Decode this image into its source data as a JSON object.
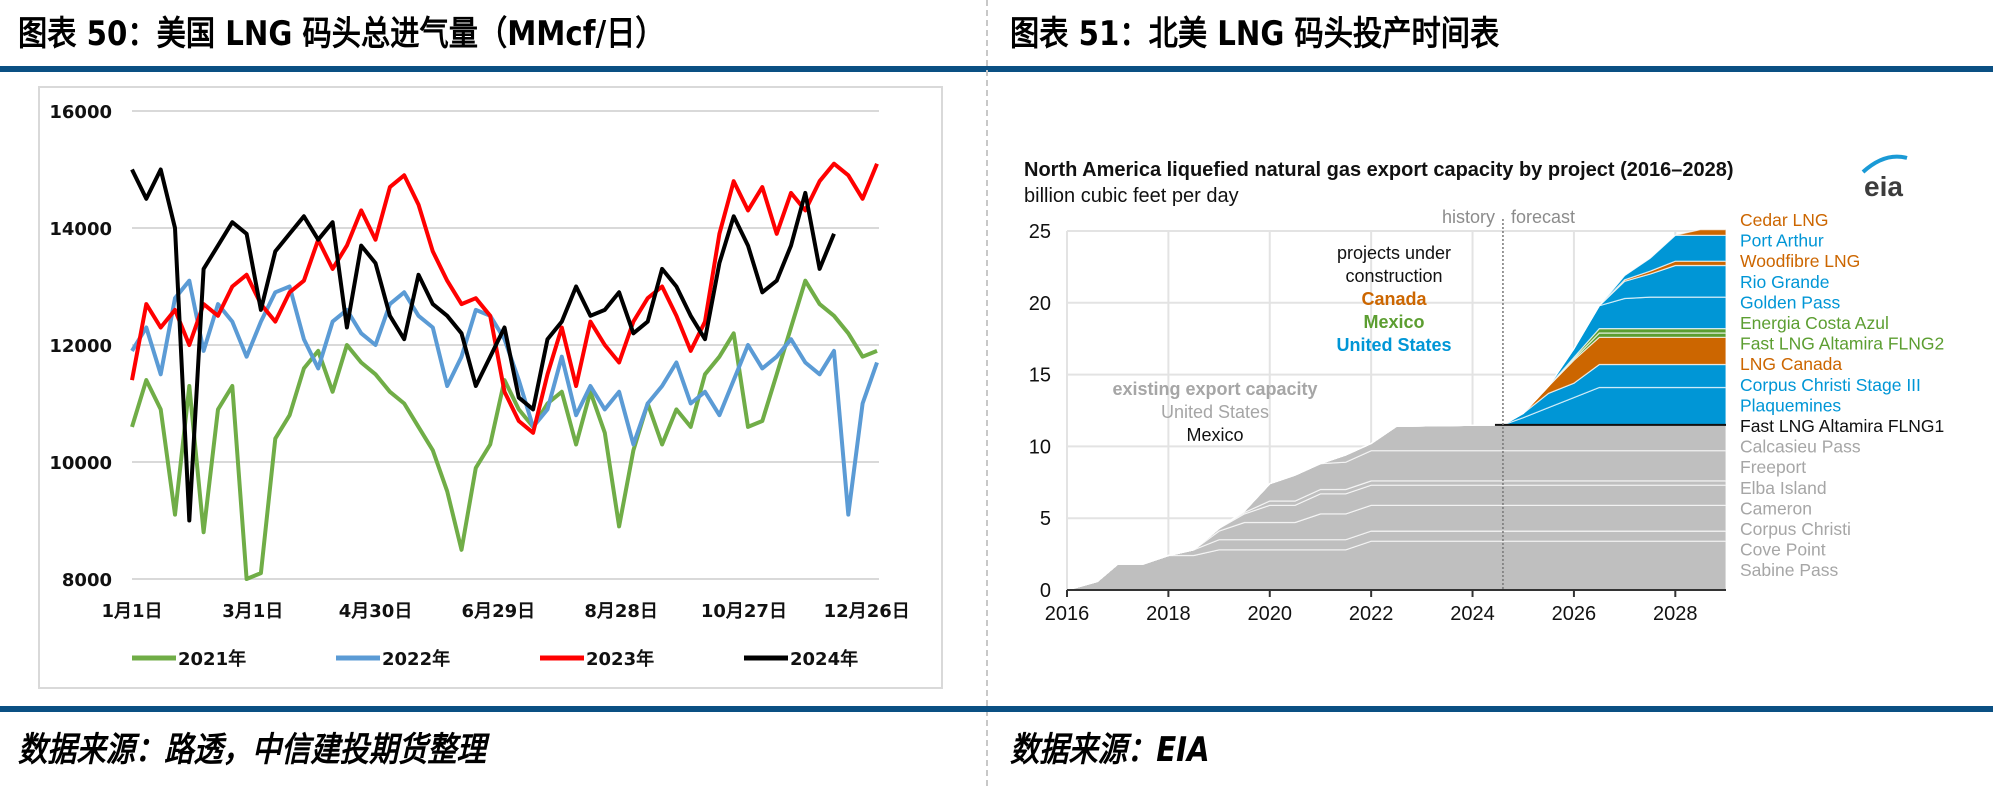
{
  "left_panel": {
    "title": "图表 50：美国 LNG 码头总进气量（MMcf/日）",
    "source": "数据来源：路透，中信建投期货整理"
  },
  "right_panel": {
    "title": "图表 51：北美 LNG 码头投产时间表",
    "source": "数据来源：EIA"
  },
  "colors": {
    "rule": "#0a5083",
    "s2021": "#70ad47",
    "s2022": "#5b9bd5",
    "s2023": "#ff0000",
    "s2024": "#000000",
    "existing": "#bfbfbf",
    "us": "#0096d6",
    "canada": "#cc6600",
    "mexico": "#5c9e31"
  },
  "chart_data": [
    {
      "type": "line",
      "title": "美国 LNG 码头总进气量（MMcf/日）",
      "xlabel": "",
      "ylabel": "",
      "ylim": [
        8000,
        16000
      ],
      "yticks": [
        "16000",
        "14000",
        "12000",
        "10000",
        "8000"
      ],
      "ytick_values": [
        16000,
        14000,
        12000,
        10000,
        8000
      ],
      "xticks": [
        "1月1日",
        "3月1日",
        "4月30日",
        "6月29日",
        "8月28日",
        "10月27日",
        "12月26日"
      ],
      "xtick_days": [
        0,
        59,
        119,
        179,
        239,
        299,
        359
      ],
      "xlim_days": [
        0,
        365
      ],
      "grid": true,
      "legend_position": "bottom",
      "x_days": [
        0,
        7,
        14,
        21,
        28,
        35,
        42,
        49,
        56,
        63,
        70,
        77,
        84,
        91,
        98,
        105,
        112,
        119,
        126,
        133,
        140,
        147,
        154,
        161,
        168,
        175,
        182,
        189,
        196,
        203,
        210,
        217,
        224,
        231,
        238,
        245,
        252,
        259,
        266,
        273,
        280,
        287,
        294,
        301,
        308,
        315,
        322,
        329,
        336,
        343,
        350,
        357,
        364
      ],
      "series": [
        {
          "name": "2021年",
          "color_key": "s2021",
          "values": [
            10600,
            11400,
            10900,
            9100,
            11300,
            8800,
            10900,
            11300,
            7900,
            8100,
            10400,
            10800,
            11600,
            11900,
            11200,
            12000,
            11700,
            11500,
            11200,
            11000,
            10600,
            10200,
            9500,
            8500,
            9900,
            10300,
            11400,
            10900,
            10600,
            11000,
            11200,
            10300,
            11200,
            10500,
            8900,
            10200,
            11000,
            10300,
            10900,
            10600,
            11500,
            11800,
            12200,
            10600,
            10700,
            11500,
            12300,
            13100,
            12700,
            12500,
            12200,
            11800,
            11900
          ]
        },
        {
          "name": "2022年",
          "color_key": "s2022",
          "values": [
            11900,
            12300,
            11500,
            12800,
            13100,
            11900,
            12700,
            12400,
            11800,
            12400,
            12900,
            13000,
            12100,
            11600,
            12400,
            12600,
            12200,
            12000,
            12700,
            12900,
            12500,
            12300,
            11300,
            11800,
            12600,
            12500,
            12100,
            11400,
            10600,
            10900,
            11800,
            10800,
            11300,
            10900,
            11200,
            10300,
            11000,
            11300,
            11700,
            11000,
            11200,
            10800,
            11400,
            12000,
            11600,
            11800,
            12100,
            11700,
            11500,
            11900,
            9100,
            11000,
            11700
          ]
        },
        {
          "name": "2023年",
          "color_key": "s2023",
          "values": [
            11400,
            12700,
            12300,
            12600,
            12000,
            12700,
            12500,
            13000,
            13200,
            12700,
            12400,
            12900,
            13100,
            13800,
            13300,
            13700,
            14300,
            13800,
            14700,
            14900,
            14400,
            13600,
            13100,
            12700,
            12800,
            12500,
            11200,
            10700,
            10500,
            11500,
            12300,
            11300,
            12400,
            12000,
            11700,
            12400,
            12800,
            13000,
            12500,
            11900,
            12400,
            13900,
            14800,
            14300,
            14700,
            13900,
            14600,
            14300,
            14800,
            15100,
            14900,
            14500,
            15100
          ]
        },
        {
          "name": "2024年",
          "color_key": "s2024",
          "values": [
            15000,
            14500,
            15000,
            14000,
            9000,
            13300,
            13700,
            14100,
            13900,
            12600,
            13600,
            13900,
            14200,
            13800,
            14100,
            12300,
            13700,
            13400,
            12500,
            12100,
            13200,
            12700,
            12500,
            12200,
            11300,
            11800,
            12300,
            11100,
            10900,
            12100,
            12400,
            13000,
            12500,
            12600,
            12900,
            12200,
            12400,
            13300,
            13000,
            12500,
            12100,
            13400,
            14200,
            13700,
            12900,
            13100,
            13700,
            14600,
            13300,
            13900,
            null,
            null,
            null
          ]
        }
      ]
    },
    {
      "type": "area",
      "title": "North America liquefied natural gas export capacity by project (2016–2028)",
      "subtitle": "billion cubic feet per day",
      "ylim": [
        0,
        25
      ],
      "yticks": [
        "0",
        "5",
        "10",
        "15",
        "20",
        "25"
      ],
      "ytick_values": [
        0,
        5,
        10,
        15,
        20,
        25
      ],
      "xticks": [
        "2016",
        "2018",
        "2020",
        "2022",
        "2024",
        "2026",
        "2028"
      ],
      "xtick_values": [
        2016,
        2018,
        2020,
        2022,
        2024,
        2026,
        2028
      ],
      "xlim": [
        2016,
        2029
      ],
      "grid": true,
      "history_label": "history",
      "forecast_label": "forecast",
      "forecast_start": 2024.6,
      "logo_text": "eia",
      "annotations": {
        "projects_line1": "projects under",
        "projects_line2": "construction",
        "canada": "Canada",
        "mexico": "Mexico",
        "us": "United States",
        "existing_line1": "existing export capacity",
        "existing_line2": "United States",
        "existing_line3": "Mexico"
      },
      "x": [
        2016,
        2016.6,
        2017,
        2017.5,
        2018,
        2018.5,
        2019,
        2019.5,
        2020,
        2020.5,
        2021,
        2021.5,
        2022,
        2022.5,
        2024.6,
        2025,
        2025.5,
        2026,
        2026.5,
        2027,
        2027.5,
        2028,
        2028.5,
        2029
      ],
      "series": [
        {
          "name": "Sabine Pass",
          "group": "existing",
          "color_key": "existing",
          "values": [
            0,
            0.6,
            1.8,
            1.8,
            2.4,
            2.4,
            2.8,
            2.8,
            2.8,
            2.8,
            2.8,
            2.8,
            3.4,
            3.4,
            3.4,
            3.4,
            3.4,
            3.4,
            3.4,
            3.4,
            3.4,
            3.4,
            3.4,
            3.4
          ]
        },
        {
          "name": "Cove Point",
          "group": "existing",
          "color_key": "existing",
          "values": [
            0,
            0,
            0,
            0,
            0,
            0.4,
            0.7,
            0.7,
            0.7,
            0.7,
            0.7,
            0.7,
            0.7,
            0.7,
            0.7,
            0.7,
            0.7,
            0.7,
            0.7,
            0.7,
            0.7,
            0.7,
            0.7,
            0.7
          ]
        },
        {
          "name": "Corpus Christi",
          "group": "existing",
          "color_key": "existing",
          "values": [
            0,
            0,
            0,
            0,
            0,
            0,
            0.6,
            1.2,
            1.2,
            1.2,
            1.8,
            1.8,
            1.8,
            1.8,
            1.8,
            1.8,
            1.8,
            1.8,
            1.8,
            1.8,
            1.8,
            1.8,
            1.8,
            1.8
          ]
        },
        {
          "name": "Cameron",
          "group": "existing",
          "color_key": "existing",
          "values": [
            0,
            0,
            0,
            0,
            0,
            0,
            0.2,
            0.6,
            1.2,
            1.2,
            1.4,
            1.4,
            1.4,
            1.4,
            1.4,
            1.4,
            1.4,
            1.4,
            1.4,
            1.4,
            1.4,
            1.4,
            1.4,
            1.4
          ]
        },
        {
          "name": "Elba Island",
          "group": "existing",
          "color_key": "existing",
          "values": [
            0,
            0,
            0,
            0,
            0,
            0,
            0,
            0.1,
            0.3,
            0.3,
            0.3,
            0.3,
            0.3,
            0.3,
            0.3,
            0.3,
            0.3,
            0.3,
            0.3,
            0.3,
            0.3,
            0.3,
            0.3,
            0.3
          ]
        },
        {
          "name": "Freeport",
          "group": "existing",
          "color_key": "existing",
          "values": [
            0,
            0,
            0,
            0,
            0,
            0,
            0,
            0.1,
            1.2,
            1.8,
            1.8,
            1.9,
            2.1,
            2.1,
            2.1,
            2.1,
            2.1,
            2.1,
            2.1,
            2.1,
            2.1,
            2.1,
            2.1,
            2.1
          ]
        },
        {
          "name": "Calcasieu Pass",
          "group": "existing",
          "color_key": "existing",
          "values": [
            0,
            0,
            0,
            0,
            0,
            0,
            0,
            0,
            0,
            0,
            0,
            0.5,
            0.5,
            1.7,
            1.8,
            1.8,
            1.8,
            1.8,
            1.8,
            1.8,
            1.8,
            1.8,
            1.8,
            1.8
          ]
        },
        {
          "name": "Fast LNG Altamira FLNG1",
          "group": "mexico",
          "color_key": "existing",
          "values": [
            0,
            0,
            0,
            0,
            0,
            0,
            0,
            0,
            0,
            0,
            0,
            0,
            0,
            0,
            0,
            0,
            0,
            0,
            0,
            0,
            0,
            0,
            0,
            0
          ]
        },
        {
          "name": "Plaquemines",
          "group": "us",
          "color_key": "us",
          "values": [
            0,
            0,
            0,
            0,
            0,
            0,
            0,
            0,
            0,
            0,
            0,
            0,
            0,
            0,
            0,
            0.5,
            1.2,
            1.9,
            2.6,
            2.6,
            2.6,
            2.6,
            2.6,
            2.6
          ]
        },
        {
          "name": "Corpus Christi Stage III",
          "group": "us",
          "color_key": "us",
          "values": [
            0,
            0,
            0,
            0,
            0,
            0,
            0,
            0,
            0,
            0,
            0,
            0,
            0,
            0,
            0,
            0.3,
            1.0,
            1.0,
            1.6,
            1.6,
            1.6,
            1.6,
            1.6,
            1.6
          ]
        },
        {
          "name": "LNG Canada",
          "group": "canada",
          "color_key": "canada",
          "values": [
            0,
            0,
            0,
            0,
            0,
            0,
            0,
            0,
            0,
            0,
            0,
            0,
            0,
            0,
            0,
            0,
            0.5,
            1.6,
            1.9,
            1.9,
            1.9,
            1.9,
            1.9,
            1.9
          ]
        },
        {
          "name": "Fast LNG Altamira FLNG2",
          "group": "mexico",
          "color_key": "mexico",
          "values": [
            0,
            0,
            0,
            0,
            0,
            0,
            0,
            0,
            0,
            0,
            0,
            0,
            0,
            0,
            0,
            0,
            0,
            0.1,
            0.3,
            0.3,
            0.3,
            0.3,
            0.3,
            0.3
          ]
        },
        {
          "name": "Energia Costa Azul",
          "group": "mexico",
          "color_key": "mexico",
          "values": [
            0,
            0,
            0,
            0,
            0,
            0,
            0,
            0,
            0,
            0,
            0,
            0,
            0,
            0,
            0,
            0,
            0,
            0.1,
            0.3,
            0.3,
            0.3,
            0.3,
            0.3,
            0.3
          ]
        },
        {
          "name": "Golden Pass",
          "group": "us",
          "color_key": "us",
          "values": [
            0,
            0,
            0,
            0,
            0,
            0,
            0,
            0,
            0,
            0,
            0,
            0,
            0,
            0,
            0,
            0,
            0,
            0.6,
            1.6,
            2.1,
            2.2,
            2.2,
            2.2,
            2.2
          ]
        },
        {
          "name": "Rio Grande",
          "group": "us",
          "color_key": "us",
          "values": [
            0,
            0,
            0,
            0,
            0,
            0,
            0,
            0,
            0,
            0,
            0,
            0,
            0,
            0,
            0,
            0,
            0,
            0,
            0,
            1.2,
            1.6,
            2.2,
            2.2,
            2.2
          ]
        },
        {
          "name": "Woodfibre LNG",
          "group": "canada",
          "color_key": "canada",
          "values": [
            0,
            0,
            0,
            0,
            0,
            0,
            0,
            0,
            0,
            0,
            0,
            0,
            0,
            0,
            0,
            0,
            0,
            0,
            0,
            0.1,
            0.2,
            0.3,
            0.3,
            0.3
          ]
        },
        {
          "name": "Port Arthur",
          "group": "us",
          "color_key": "us",
          "values": [
            0,
            0,
            0,
            0,
            0,
            0,
            0,
            0,
            0,
            0,
            0,
            0,
            0,
            0,
            0,
            0,
            0,
            0,
            0,
            0.3,
            0.9,
            1.8,
            1.8,
            1.8
          ]
        },
        {
          "name": "Cedar LNG",
          "group": "canada",
          "color_key": "canada",
          "values": [
            0,
            0,
            0,
            0,
            0,
            0,
            0,
            0,
            0,
            0,
            0,
            0,
            0,
            0,
            0,
            0,
            0,
            0,
            0,
            0,
            0,
            0,
            0.4,
            0.4
          ]
        }
      ],
      "legend": [
        {
          "label": "Cedar LNG",
          "color_key": "canada"
        },
        {
          "label": "Port Arthur",
          "color_key": "us"
        },
        {
          "label": "Woodfibre LNG",
          "color_key": "canada"
        },
        {
          "label": "Rio Grande",
          "color_key": "us"
        },
        {
          "label": "Golden Pass",
          "color_key": "us"
        },
        {
          "label": "Energia Costa Azul",
          "color_key": "mexico"
        },
        {
          "label": "Fast LNG Altamira FLNG2",
          "color_key": "mexico"
        },
        {
          "label": "LNG Canada",
          "color_key": "canada"
        },
        {
          "label": "Corpus Christi Stage III",
          "color_key": "us"
        },
        {
          "label": "Plaquemines",
          "color_key": "us"
        },
        {
          "label": "Fast LNG Altamira FLNG1",
          "color_key": "black"
        },
        {
          "label": "Calcasieu Pass",
          "color_key": "grey"
        },
        {
          "label": "Freeport",
          "color_key": "grey"
        },
        {
          "label": "Elba Island",
          "color_key": "grey"
        },
        {
          "label": "Cameron",
          "color_key": "grey"
        },
        {
          "label": "Corpus Christi",
          "color_key": "grey"
        },
        {
          "label": "Cove Point",
          "color_key": "grey"
        },
        {
          "label": "Sabine Pass",
          "color_key": "grey"
        }
      ]
    }
  ]
}
